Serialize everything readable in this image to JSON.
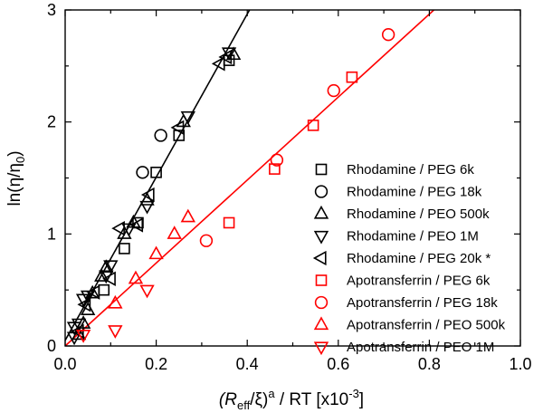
{
  "chart_data": {
    "type": "scatter",
    "xlabel": {
      "part1": "(R",
      "part1_sub": "eff",
      "part2": "/ξ)",
      "part2_sup": "a",
      "part3": " / RT [x10",
      "part3_sup": "-3",
      "part4": "]"
    },
    "ylabel": {
      "part1": "ln(η/η",
      "part1_sub": "0",
      "part2": ")"
    },
    "xlim": [
      0.0,
      1.0
    ],
    "ylim": [
      0,
      3
    ],
    "x_ticks": [
      "0.0",
      "0.2",
      "0.4",
      "0.6",
      "0.8",
      "1.0"
    ],
    "y_ticks": [
      "0",
      "1",
      "2",
      "3"
    ],
    "legend_position": "right",
    "series": [
      {
        "name": "Rhodamine / PEG 6k",
        "marker": "square",
        "color": "#000000",
        "points": [
          [
            0.085,
            0.5
          ],
          [
            0.13,
            0.87
          ],
          [
            0.16,
            1.1
          ],
          [
            0.2,
            1.55
          ],
          [
            0.25,
            1.88
          ],
          [
            0.36,
            2.55
          ]
        ]
      },
      {
        "name": "Rhodamine / PEG 18k",
        "marker": "circle",
        "color": "#000000",
        "points": [
          [
            0.17,
            1.55
          ],
          [
            0.21,
            1.88
          ]
        ]
      },
      {
        "name": "Rhodamine / PEO 500k",
        "marker": "triangle-up",
        "color": "#000000",
        "points": [
          [
            0.03,
            0.1
          ],
          [
            0.04,
            0.2
          ],
          [
            0.05,
            0.32
          ],
          [
            0.06,
            0.47
          ],
          [
            0.08,
            0.62
          ],
          [
            0.09,
            0.7
          ],
          [
            0.13,
            1.0
          ],
          [
            0.15,
            1.1
          ],
          [
            0.18,
            1.3
          ],
          [
            0.26,
            2.0
          ],
          [
            0.37,
            2.6
          ]
        ]
      },
      {
        "name": "Rhodamine / PEO 1M",
        "marker": "triangle-down",
        "color": "#000000",
        "points": [
          [
            0.02,
            0.08
          ],
          [
            0.02,
            0.17
          ],
          [
            0.03,
            0.2
          ],
          [
            0.04,
            0.42
          ],
          [
            0.05,
            0.45
          ],
          [
            0.09,
            0.63
          ],
          [
            0.1,
            0.72
          ],
          [
            0.14,
            1.05
          ],
          [
            0.18,
            1.25
          ],
          [
            0.27,
            2.05
          ],
          [
            0.36,
            2.62
          ]
        ]
      },
      {
        "name": "Rhodamine / PEG 20k *",
        "marker": "triangle-left",
        "color": "#000000",
        "points": [
          [
            0.03,
            0.13
          ],
          [
            0.045,
            0.37
          ],
          [
            0.065,
            0.48
          ],
          [
            0.1,
            0.6
          ],
          [
            0.12,
            1.05
          ],
          [
            0.16,
            1.08
          ],
          [
            0.185,
            1.35
          ],
          [
            0.25,
            1.95
          ],
          [
            0.34,
            2.52
          ],
          [
            0.355,
            2.58
          ]
        ]
      },
      {
        "name": "Apotransferrin / PEG 6k",
        "marker": "square",
        "color": "#ff0000",
        "points": [
          [
            0.36,
            1.1
          ],
          [
            0.46,
            1.58
          ],
          [
            0.545,
            1.97
          ],
          [
            0.63,
            2.4
          ]
        ]
      },
      {
        "name": "Apotransferrin / PEG 18k",
        "marker": "circle",
        "color": "#ff0000",
        "points": [
          [
            0.31,
            0.94
          ],
          [
            0.465,
            1.66
          ],
          [
            0.59,
            2.28
          ],
          [
            0.71,
            2.78
          ]
        ]
      },
      {
        "name": "Apotransferrin / PEO 500k",
        "marker": "triangle-up",
        "color": "#ff0000",
        "points": [
          [
            0.11,
            0.38
          ],
          [
            0.155,
            0.6
          ],
          [
            0.2,
            0.82
          ],
          [
            0.24,
            1.0
          ],
          [
            0.27,
            1.15
          ]
        ]
      },
      {
        "name": "Apotransferrin / PEO 1M",
        "marker": "triangle-down",
        "color": "#ff0000",
        "points": [
          [
            0.04,
            0.1
          ],
          [
            0.11,
            0.14
          ],
          [
            0.18,
            0.5
          ]
        ]
      }
    ],
    "fit_lines": [
      {
        "color": "#000000",
        "x": [
          0.0,
          0.405
        ],
        "y": [
          0.05,
          3.0
        ]
      },
      {
        "color": "#ff0000",
        "x": [
          0.0,
          0.81
        ],
        "y": [
          0.0,
          3.0
        ]
      }
    ]
  }
}
